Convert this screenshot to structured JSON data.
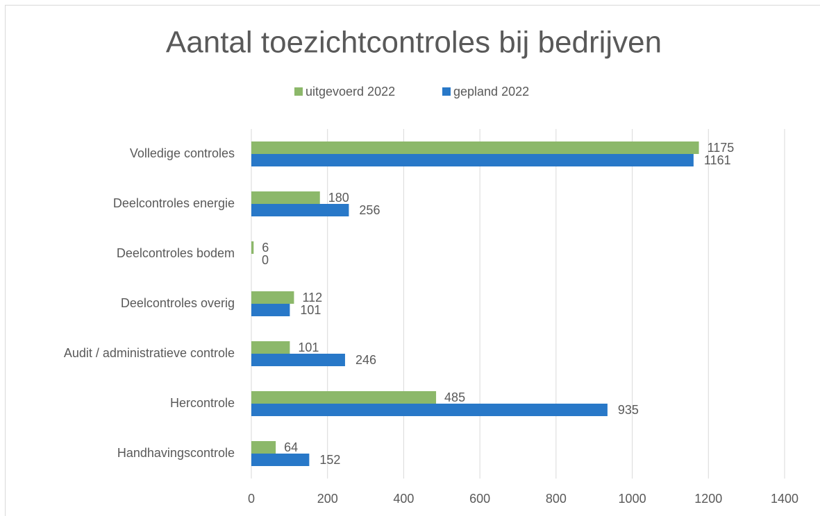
{
  "chart_data": {
    "type": "hbar",
    "title": "Aantal toezichtcontroles bij bedrijven",
    "categories": [
      "Volledige controles",
      "Deelcontroles energie",
      "Deelcontroles bodem",
      "Deelcontroles overig",
      "Audit / administratieve controle",
      "Hercontrole",
      "Handhavingscontrole"
    ],
    "series": [
      {
        "name": "uitgevoerd 2022",
        "color": "#8cb86a",
        "values": [
          1175,
          180,
          6,
          112,
          101,
          485,
          64
        ]
      },
      {
        "name": "gepland 2022",
        "color": "#2878c8",
        "values": [
          1161,
          256,
          0,
          101,
          246,
          935,
          152
        ]
      }
    ],
    "xlim": [
      0,
      1400
    ],
    "xticks": [
      0,
      200,
      400,
      600,
      800,
      1000,
      1200,
      1400
    ],
    "grid": true,
    "legend": "top"
  }
}
